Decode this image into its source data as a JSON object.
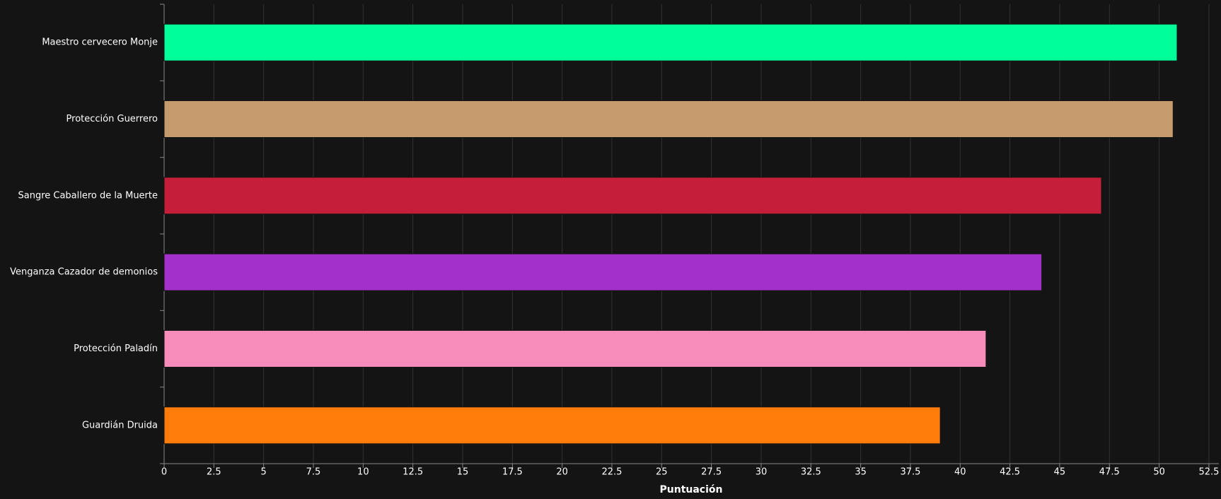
{
  "chart_data": {
    "type": "bar",
    "orientation": "horizontal",
    "x_label": "Puntuación",
    "categories": [
      "Maestro cervecero Monje",
      "Protección Guerrero",
      "Sangre Caballero de la Muerte",
      "Venganza Cazador de demonios",
      "Protección Paladín",
      "Guardián Druida"
    ],
    "values": [
      50.9,
      50.7,
      47.1,
      44.1,
      41.3,
      39.0
    ],
    "colors": [
      "#00ff98",
      "#c69b6d",
      "#c41e3a",
      "#a330c9",
      "#f78cba",
      "#ff7c0a"
    ],
    "xlim": [
      0,
      53
    ],
    "xticks": [
      0,
      2.5,
      5,
      7.5,
      10,
      12.5,
      15,
      17.5,
      20,
      22.5,
      25,
      27.5,
      30,
      32.5,
      35,
      37.5,
      40,
      42.5,
      45,
      47.5,
      50,
      52.5
    ],
    "grid": true
  }
}
